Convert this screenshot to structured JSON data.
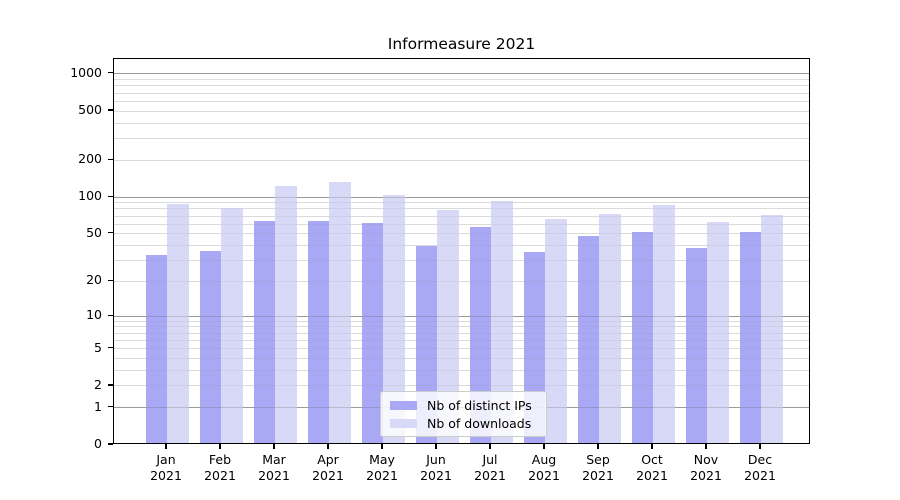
{
  "chart_data": {
    "type": "bar",
    "title": "Informeasure 2021",
    "categories": [
      "Jan",
      "Feb",
      "Mar",
      "Apr",
      "May",
      "Jun",
      "Jul",
      "Aug",
      "Sep",
      "Oct",
      "Nov",
      "Dec"
    ],
    "year": "2021",
    "series": [
      {
        "name": "Nb of distinct IPs",
        "color": "#a8a8f4",
        "values": [
          32,
          35,
          61,
          61,
          59,
          38,
          55,
          34,
          46,
          50,
          37,
          50
        ]
      },
      {
        "name": "Nb of downloads",
        "color": "#d8d8f7",
        "values": [
          84,
          78,
          118,
          128,
          101,
          76,
          90,
          64,
          70,
          83,
          60,
          69
        ]
      }
    ],
    "yscale": "log1p",
    "yticks": [
      0,
      1,
      2,
      5,
      10,
      20,
      50,
      100,
      200,
      500,
      1000
    ],
    "ylim": [
      0,
      1320
    ],
    "grid": {
      "major": [
        1,
        10,
        100,
        1000
      ],
      "minor": "2-9 multiples per decade",
      "on": true
    },
    "legend_position": "lower center inside",
    "colors": {
      "major_grid": "#b0b0b0",
      "minor_grid": "#e7e7e7",
      "axis": "#000000",
      "background": "#ffffff"
    }
  }
}
